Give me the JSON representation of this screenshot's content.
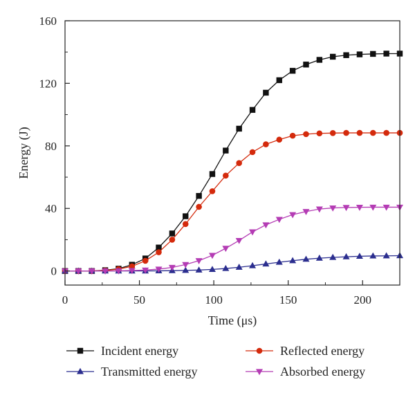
{
  "chart_data": {
    "type": "line",
    "title": "",
    "xlabel": "Time (μs)",
    "ylabel": "Energy (J)",
    "xlim": [
      0,
      225
    ],
    "ylim": [
      -9,
      160
    ],
    "xticks": [
      0,
      50,
      100,
      150,
      200
    ],
    "yticks": [
      0,
      40,
      80,
      120,
      160
    ],
    "grid": false,
    "legend_position": "bottom",
    "x": [
      0,
      9,
      18,
      27,
      36,
      45,
      54,
      63,
      72,
      81,
      90,
      99,
      108,
      117,
      126,
      135,
      144,
      153,
      162,
      171,
      180,
      189,
      198,
      207,
      216,
      225
    ],
    "series": [
      {
        "name": "Incident energy",
        "color": "#111111",
        "marker": "square",
        "values": [
          0,
          0,
          0,
          0.5,
          1.5,
          4,
          8,
          15,
          24,
          35,
          48,
          62,
          77,
          91,
          103,
          114,
          122,
          128,
          132,
          135,
          137,
          138,
          138.5,
          138.8,
          139,
          139
        ]
      },
      {
        "name": "Reflected energy",
        "color": "#d42a0c",
        "marker": "circle",
        "values": [
          0,
          0,
          0,
          0.3,
          1.2,
          3,
          6.5,
          12,
          20,
          30,
          41,
          51,
          61,
          69,
          76,
          81,
          84,
          86.5,
          87.5,
          88,
          88.2,
          88.3,
          88.3,
          88.3,
          88.3,
          88.3
        ]
      },
      {
        "name": "Transmitted energy",
        "color": "#2b2e8f",
        "marker": "triangle-up",
        "values": [
          0,
          0,
          0,
          0,
          0,
          0,
          0,
          0.1,
          0.2,
          0.4,
          0.6,
          1,
          1.6,
          2.4,
          3.4,
          4.5,
          5.6,
          6.6,
          7.5,
          8.2,
          8.7,
          9.1,
          9.4,
          9.6,
          9.7,
          9.8
        ]
      },
      {
        "name": "Absorbed energy",
        "color": "#b43cb4",
        "marker": "triangle-down",
        "values": [
          0,
          0,
          0,
          0,
          0.1,
          0.3,
          0.6,
          1.2,
          2.3,
          4.1,
          6.6,
          10,
          14.5,
          19.5,
          25,
          29.5,
          33,
          36,
          38,
          39.6,
          40.3,
          40.6,
          40.7,
          40.8,
          40.8,
          40.8
        ]
      }
    ]
  }
}
